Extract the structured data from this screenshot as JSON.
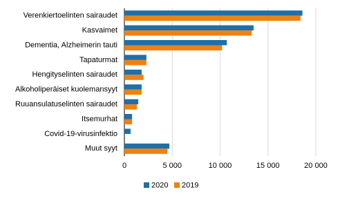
{
  "chart_data": {
    "type": "hbar",
    "categories": [
      "Verenkiertoelinten sairaudet",
      "Kasvaimet",
      "Dementia, Alzheimerin tauti",
      "Tapaturmat",
      "Hengityselinten sairaudet",
      "Alkoholiperäiset kuolemansyyt",
      "Ruuansulatuselinten sairaudet",
      "Itsemurhat",
      "Covid-19-virusinfektio",
      "Muut syyt"
    ],
    "series": [
      {
        "name": "2020",
        "color": "#1f6fa8",
        "values": [
          18600,
          13500,
          10700,
          2300,
          1800,
          1800,
          1450,
          800,
          650,
          4700
        ]
      },
      {
        "name": "2019",
        "color": "#f08010",
        "values": [
          18400,
          13300,
          10200,
          2300,
          2000,
          1800,
          1300,
          800,
          null,
          4500
        ]
      }
    ],
    "xlim": [
      0,
      20000
    ],
    "xticks": [
      0,
      {
        "value": 5000,
        "label": "5 000"
      },
      {
        "value": 10000,
        "label": "10 000"
      },
      {
        "value": 15000,
        "label": "15 000"
      },
      {
        "value": 20000,
        "label": "20 000"
      }
    ],
    "grid": true,
    "legend": "bottom"
  }
}
